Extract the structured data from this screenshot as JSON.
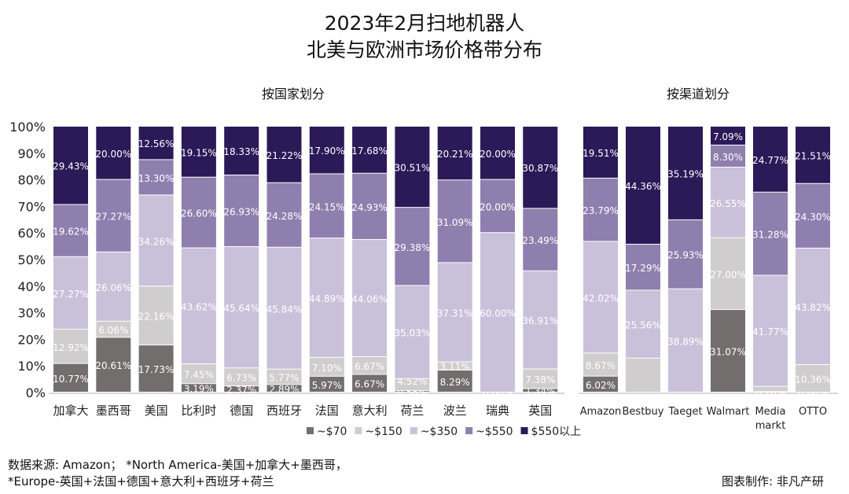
{
  "title_line1": "2023年2月扫地机器人",
  "title_line2": "北美与欧洲市场价格带分布",
  "footer_source": "数据来源: Amazon；  *North America-美国+加拿大+墨西哥，",
  "footer_europe": "*Europe-英国+法国+德国+意大利+西班牙+荷兰",
  "footer_credit": "图表制作: 非凡产研",
  "colors": {
    "~$70": "#736e6e",
    "~$150": "#cfcdcd",
    "~$350": "#c9c1da",
    "~$550": "#8f7fae",
    "$550以上": "#2b1958"
  },
  "legend": [
    "~$70",
    "~$150",
    "~$350",
    "~$550",
    "$550以上"
  ],
  "chart_data": [
    {
      "type": "bar",
      "stacked": true,
      "title": "按国家划分",
      "ylim": [
        0,
        100
      ],
      "yticks": [
        "0%",
        "10%",
        "20%",
        "30%",
        "40%",
        "50%",
        "60%",
        "70%",
        "80%",
        "90%",
        "100%"
      ],
      "categories": [
        "加拿大",
        "墨西哥",
        "美国",
        "比利时",
        "德国",
        "西班牙",
        "法国",
        "意大利",
        "荷兰",
        "波兰",
        "瑞典",
        "英国"
      ],
      "series": [
        {
          "name": "~$70",
          "values": [
            10.77,
            20.61,
            17.73,
            3.19,
            2.37,
            2.89,
            5.97,
            6.67,
            0.56,
            8.29,
            0,
            1.34
          ]
        },
        {
          "name": "~$150",
          "values": [
            12.92,
            6.06,
            22.16,
            7.45,
            6.73,
            5.77,
            7.1,
            6.67,
            4.52,
            3.11,
            0,
            7.38
          ]
        },
        {
          "name": "~$350",
          "values": [
            27.27,
            26.06,
            34.26,
            43.62,
            45.64,
            45.84,
            44.89,
            44.06,
            35.03,
            37.31,
            60.0,
            36.91
          ]
        },
        {
          "name": "~$550",
          "values": [
            19.62,
            27.27,
            13.3,
            26.6,
            26.93,
            24.28,
            24.15,
            24.93,
            29.38,
            31.09,
            20.0,
            23.49
          ]
        },
        {
          "name": "$550以上",
          "values": [
            29.43,
            20.0,
            12.56,
            19.15,
            18.33,
            21.22,
            17.9,
            17.68,
            30.51,
            20.21,
            20.0,
            30.87
          ]
        }
      ]
    },
    {
      "type": "bar",
      "stacked": true,
      "title": "按渠道划分",
      "ylim": [
        0,
        100
      ],
      "categories": [
        "Amazon",
        "Bestbuy",
        "Taeget",
        "Walmart",
        "Media markt",
        "OTTO"
      ],
      "series": [
        {
          "name": "~$70",
          "values": [
            6.02,
            0,
            0,
            31.07,
            0.2,
            0
          ]
        },
        {
          "name": "~$150",
          "values": [
            8.67,
            12.79,
            0,
            27.0,
            1.98,
            10.36
          ]
        },
        {
          "name": "~$350",
          "values": [
            42.02,
            25.56,
            38.89,
            26.55,
            41.77,
            43.82
          ]
        },
        {
          "name": "~$550",
          "values": [
            23.79,
            17.29,
            25.93,
            8.3,
            31.28,
            24.3
          ]
        },
        {
          "name": "$550以上",
          "values": [
            19.51,
            44.36,
            35.19,
            7.09,
            24.77,
            21.51
          ]
        }
      ]
    }
  ]
}
